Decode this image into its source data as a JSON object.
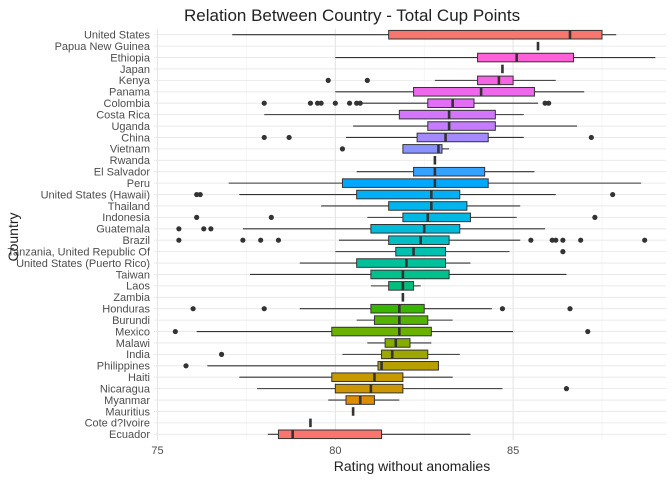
{
  "chart_data": {
    "type": "boxplot",
    "title": "Relation Between Country - Total Cup Points",
    "xlabel": "Rating without anomalies",
    "ylabel": "Country",
    "xlim": [
      74.9,
      89.3
    ],
    "x_ticks": [
      75,
      80,
      85
    ],
    "grid": true,
    "orientation": "horizontal",
    "boxes": [
      {
        "category": "United States",
        "whisker_low": 77.1,
        "q1": 81.5,
        "median": 86.6,
        "q3": 87.5,
        "whisker_high": 87.9,
        "outliers": [],
        "color": "#F8766D"
      },
      {
        "category": "Papua New Guinea",
        "whisker_low": 85.7,
        "q1": 85.7,
        "median": 85.7,
        "q3": 85.7,
        "whisker_high": 85.7,
        "outliers": [],
        "color": "#F27D52"
      },
      {
        "category": "Ethiopia",
        "whisker_low": 80.0,
        "q1": 84.0,
        "median": 85.1,
        "q3": 86.7,
        "whisker_high": 89.0,
        "outliers": [],
        "color": "#FC61D5"
      },
      {
        "category": "Japan",
        "whisker_low": 84.7,
        "q1": 84.7,
        "median": 84.7,
        "q3": 84.7,
        "whisker_high": 84.7,
        "outliers": [],
        "color": "#F564E3"
      },
      {
        "category": "Kenya",
        "whisker_low": 82.8,
        "q1": 84.0,
        "median": 84.6,
        "q3": 85.0,
        "whisker_high": 86.2,
        "outliers": [
          79.8,
          80.9
        ],
        "color": "#F564E3"
      },
      {
        "category": "Panama",
        "whisker_low": 80.0,
        "q1": 82.2,
        "median": 84.1,
        "q3": 85.6,
        "whisker_high": 87.0,
        "outliers": [],
        "color": "#EE68EE"
      },
      {
        "category": "Colombia",
        "whisker_low": 80.7,
        "q1": 82.6,
        "median": 83.3,
        "q3": 83.9,
        "whisker_high": 85.7,
        "outliers": [
          78.0,
          79.3,
          79.5,
          79.6,
          80.0,
          80.4,
          80.6,
          80.7,
          85.9,
          86.0
        ],
        "color": "#E36EF6"
      },
      {
        "category": "Costa Rica",
        "whisker_low": 78.0,
        "q1": 81.8,
        "median": 83.2,
        "q3": 84.5,
        "whisker_high": 85.3,
        "outliers": [],
        "color": "#D575FE"
      },
      {
        "category": "Uganda",
        "whisker_low": 80.5,
        "q1": 82.6,
        "median": 83.2,
        "q3": 84.5,
        "whisker_high": 86.8,
        "outliers": [],
        "color": "#C77CFF"
      },
      {
        "category": "China",
        "whisker_low": 80.3,
        "q1": 82.3,
        "median": 83.1,
        "q3": 84.3,
        "whisker_high": 85.3,
        "outliers": [
          78.0,
          78.7,
          87.2
        ],
        "color": "#A58AFF"
      },
      {
        "category": "Vietnam",
        "whisker_low": 81.9,
        "q1": 81.9,
        "median": 82.9,
        "q3": 83.0,
        "whisker_high": 83.2,
        "outliers": [
          80.2
        ],
        "color": "#8A92FF"
      },
      {
        "category": "Rwanda",
        "whisker_low": 82.8,
        "q1": 82.8,
        "median": 82.8,
        "q3": 82.8,
        "whisker_high": 82.8,
        "outliers": [],
        "color": "#619CFF"
      },
      {
        "category": "El Salvador",
        "whisker_low": 80.6,
        "q1": 82.2,
        "median": 82.8,
        "q3": 84.2,
        "whisker_high": 85.6,
        "outliers": [],
        "color": "#35A2FF"
      },
      {
        "category": "Peru",
        "whisker_low": 77.0,
        "q1": 80.2,
        "median": 82.8,
        "q3": 84.3,
        "whisker_high": 88.6,
        "outliers": [],
        "color": "#00A9FF"
      },
      {
        "category": "United States (Hawaii)",
        "whisker_low": 77.3,
        "q1": 80.6,
        "median": 82.7,
        "q3": 83.5,
        "whisker_high": 86.2,
        "outliers": [
          76.1,
          76.2,
          87.8
        ],
        "color": "#00B0F6"
      },
      {
        "category": "Thailand",
        "whisker_low": 79.6,
        "q1": 81.5,
        "median": 82.7,
        "q3": 83.7,
        "whisker_high": 85.2,
        "outliers": [],
        "color": "#00B5EE"
      },
      {
        "category": "Indonesia",
        "whisker_low": 80.9,
        "q1": 81.9,
        "median": 82.6,
        "q3": 83.8,
        "whisker_high": 85.1,
        "outliers": [
          76.1,
          78.2,
          87.3
        ],
        "color": "#00B9E3"
      },
      {
        "category": "Guatemala",
        "whisker_low": 77.4,
        "q1": 81.0,
        "median": 82.5,
        "q3": 83.5,
        "whisker_high": 85.9,
        "outliers": [
          75.6,
          76.3,
          76.5
        ],
        "color": "#00BCD8"
      },
      {
        "category": "Brazil",
        "whisker_low": 80.1,
        "q1": 81.5,
        "median": 82.4,
        "q3": 83.2,
        "whisker_high": 85.2,
        "outliers": [
          75.6,
          77.4,
          77.9,
          78.4,
          85.5,
          86.1,
          86.2,
          86.4,
          86.9,
          88.7
        ],
        "color": "#00BFC4"
      },
      {
        "category": "Tanzania, United Republic Of",
        "whisker_low": 80.0,
        "q1": 81.7,
        "median": 82.2,
        "q3": 83.1,
        "whisker_high": 84.9,
        "outliers": [
          86.4
        ],
        "color": "#00C0B0"
      },
      {
        "category": "United States (Puerto Rico)",
        "whisker_low": 79.0,
        "q1": 80.6,
        "median": 82.0,
        "q3": 83.1,
        "whisker_high": 83.8,
        "outliers": [],
        "color": "#00C19A"
      },
      {
        "category": "Taiwan",
        "whisker_low": 77.6,
        "q1": 81.0,
        "median": 81.9,
        "q3": 83.2,
        "whisker_high": 86.5,
        "outliers": [],
        "color": "#00C08B"
      },
      {
        "category": "Laos",
        "whisker_low": 81.0,
        "q1": 81.5,
        "median": 81.9,
        "q3": 82.2,
        "whisker_high": 82.4,
        "outliers": [],
        "color": "#00BF7D"
      },
      {
        "category": "Zambia",
        "whisker_low": 81.9,
        "q1": 81.9,
        "median": 81.9,
        "q3": 81.9,
        "whisker_high": 81.9,
        "outliers": [],
        "color": "#00BD5F"
      },
      {
        "category": "Honduras",
        "whisker_low": 79.0,
        "q1": 81.0,
        "median": 81.8,
        "q3": 82.5,
        "whisker_high": 84.4,
        "outliers": [
          76.0,
          78.0,
          84.7,
          86.6
        ],
        "color": "#39B600"
      },
      {
        "category": "Burundi",
        "whisker_low": 80.6,
        "q1": 81.1,
        "median": 81.8,
        "q3": 82.6,
        "whisker_high": 83.3,
        "outliers": [],
        "color": "#53B400"
      },
      {
        "category": "Mexico",
        "whisker_low": 76.1,
        "q1": 79.9,
        "median": 81.8,
        "q3": 82.7,
        "whisker_high": 85.0,
        "outliers": [
          75.5,
          87.1
        ],
        "color": "#6BB100"
      },
      {
        "category": "Malawi",
        "whisker_low": 80.9,
        "q1": 81.4,
        "median": 81.7,
        "q3": 82.1,
        "whisker_high": 82.7,
        "outliers": [],
        "color": "#85AD00"
      },
      {
        "category": "India",
        "whisker_low": 80.2,
        "q1": 81.3,
        "median": 81.6,
        "q3": 82.6,
        "whisker_high": 83.5,
        "outliers": [
          76.8
        ],
        "color": "#9DA700"
      },
      {
        "category": "Philippines",
        "whisker_low": 76.4,
        "q1": 81.2,
        "median": 81.3,
        "q3": 82.9,
        "whisker_high": 82.9,
        "outliers": [
          75.8
        ],
        "color": "#B79F00"
      },
      {
        "category": "Haiti",
        "whisker_low": 77.3,
        "q1": 79.9,
        "median": 81.1,
        "q3": 81.9,
        "whisker_high": 83.3,
        "outliers": [],
        "color": "#C49A00"
      },
      {
        "category": "Nicaragua",
        "whisker_low": 77.8,
        "q1": 80.0,
        "median": 81.0,
        "q3": 81.9,
        "whisker_high": 84.7,
        "outliers": [
          86.5
        ],
        "color": "#CD9600"
      },
      {
        "category": "Myanmar",
        "whisker_low": 79.8,
        "q1": 80.3,
        "median": 80.7,
        "q3": 81.1,
        "whisker_high": 81.8,
        "outliers": [],
        "color": "#DE8C00"
      },
      {
        "category": "Mauritius",
        "whisker_low": 80.5,
        "q1": 80.5,
        "median": 80.5,
        "q3": 80.5,
        "whisker_high": 80.5,
        "outliers": [],
        "color": "#E88526"
      },
      {
        "category": "Cote d?Ivoire",
        "whisker_low": 79.3,
        "q1": 79.3,
        "median": 79.3,
        "q3": 79.3,
        "whisker_high": 79.3,
        "outliers": [],
        "color": "#F07E50"
      },
      {
        "category": "Ecuador",
        "whisker_low": 78.1,
        "q1": 78.4,
        "median": 78.8,
        "q3": 81.3,
        "whisker_high": 83.8,
        "outliers": [],
        "color": "#F8766D"
      }
    ]
  }
}
